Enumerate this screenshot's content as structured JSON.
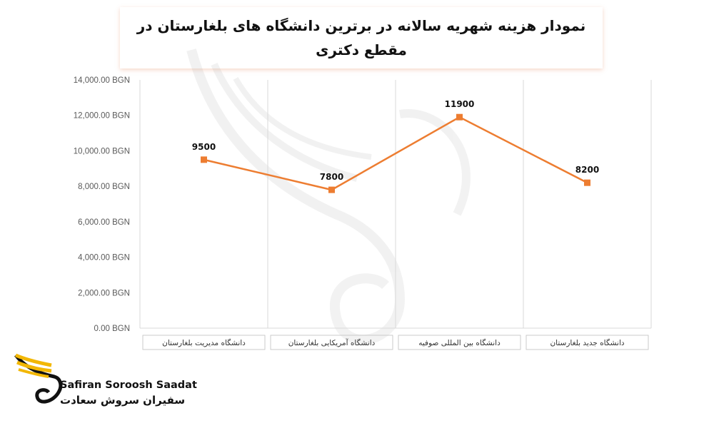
{
  "chart_data": {
    "type": "line",
    "title": "نمودار هزینه شهریه سالانه در برترین دانشگاه های بلغارستان در مقطع دکتری",
    "categories": [
      "دانشگاه مدیریت بلغارستان",
      "دانشگاه آمریکایی بلغارستان",
      "دانشگاه بین المللی صوفیه",
      "دانشگاه جدید بلغارستان"
    ],
    "values": [
      9500,
      7800,
      11900,
      8200
    ],
    "data_labels": [
      "9500",
      "7800",
      "11900",
      "8200"
    ],
    "ylim": [
      0,
      14000
    ],
    "y_ticks": [
      "0.00 BGN",
      "2,000.00 BGN",
      "4,000.00 BGN",
      "6,000.00 BGN",
      "8,000.00 BGN",
      "10,000.00 BGN",
      "12,000.00 BGN",
      "14,000.00 BGN"
    ],
    "y_tick_values": [
      0,
      2000,
      4000,
      6000,
      8000,
      10000,
      12000,
      14000
    ],
    "line_color": "#ED7D31",
    "grid": "vertical category separators",
    "legend": "none"
  },
  "brand": {
    "name_en": "Safiran Soroosh Saadat",
    "name_fa": "سفیران سروش سعادت",
    "logo_icon": "wing-s-icon",
    "logo_color": "#F2B705"
  }
}
